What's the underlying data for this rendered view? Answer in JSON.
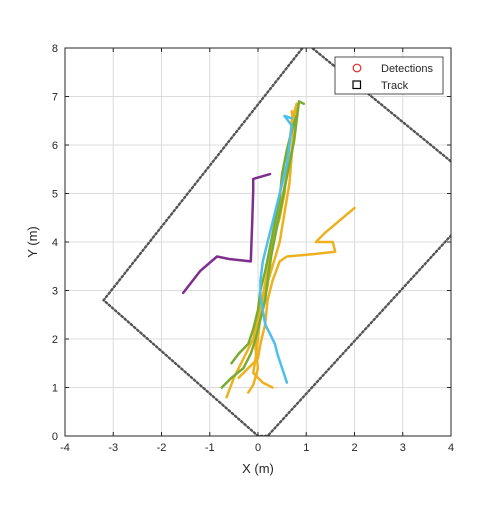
{
  "chart_data": {
    "type": "line",
    "title": "",
    "xlabel": "X (m)",
    "ylabel": "Y (m)",
    "xlim": [
      -4,
      4
    ],
    "ylim": [
      0,
      8
    ],
    "xticks": [
      "-4",
      "-3",
      "-2",
      "-1",
      "0",
      "1",
      "2",
      "3",
      "4"
    ],
    "yticks": [
      "0",
      "1",
      "2",
      "3",
      "4",
      "5",
      "6",
      "7",
      "8"
    ],
    "grid": true,
    "legend": {
      "placement": "top-right",
      "entries": [
        {
          "label": "Detections",
          "marker": "circle",
          "color": "#e0292a"
        },
        {
          "label": "Track",
          "marker": "square",
          "color": "#000000"
        }
      ]
    },
    "boundary": {
      "style": "dotted",
      "color": "#555555",
      "points": [
        [
          1.0,
          8.1
        ],
        [
          4.2,
          5.5
        ],
        [
          4.2,
          4.35
        ],
        [
          0.2,
          0.0
        ],
        [
          0.0,
          0.0
        ],
        [
          -3.2,
          2.8
        ],
        [
          1.0,
          8.1
        ]
      ]
    },
    "series": [
      {
        "color": "#7e2f8e",
        "points": [
          [
            -1.55,
            2.95
          ],
          [
            -1.2,
            3.4
          ],
          [
            -0.85,
            3.7
          ],
          [
            -0.6,
            3.65
          ],
          [
            -0.15,
            3.6
          ],
          [
            -0.12,
            4.4
          ],
          [
            -0.1,
            5.05
          ],
          [
            -0.1,
            5.3
          ],
          [
            0.25,
            5.4
          ]
        ]
      },
      {
        "color": "#edb120",
        "points": [
          [
            -0.65,
            0.8
          ],
          [
            -0.5,
            1.2
          ],
          [
            -0.3,
            1.6
          ],
          [
            -0.1,
            2.0
          ],
          [
            0.0,
            2.45
          ],
          [
            0.1,
            2.9
          ],
          [
            0.2,
            3.4
          ],
          [
            0.3,
            3.9
          ],
          [
            0.4,
            4.4
          ],
          [
            0.5,
            4.9
          ],
          [
            0.6,
            5.4
          ],
          [
            0.7,
            5.9
          ],
          [
            0.75,
            6.4
          ],
          [
            0.8,
            6.8
          ]
        ]
      },
      {
        "color": "#edb120",
        "points": [
          [
            -0.4,
            1.2
          ],
          [
            -0.2,
            1.4
          ],
          [
            0.0,
            1.6
          ],
          [
            0.05,
            1.9
          ],
          [
            0.15,
            2.3
          ],
          [
            0.2,
            2.8
          ],
          [
            0.3,
            3.2
          ],
          [
            0.45,
            3.6
          ],
          [
            0.6,
            3.7
          ],
          [
            1.15,
            3.75
          ],
          [
            1.6,
            3.8
          ],
          [
            1.55,
            4.0
          ],
          [
            1.2,
            4.0
          ],
          [
            1.4,
            4.2
          ],
          [
            2.0,
            4.7
          ]
        ]
      },
      {
        "color": "#edb120",
        "points": [
          [
            0.3,
            1.0
          ],
          [
            0.1,
            1.1
          ],
          [
            -0.1,
            1.3
          ],
          [
            -0.05,
            1.6
          ],
          [
            0.0,
            2.0
          ],
          [
            0.05,
            2.5
          ],
          [
            0.15,
            3.0
          ],
          [
            0.3,
            3.5
          ],
          [
            0.45,
            4.0
          ],
          [
            0.55,
            4.6
          ],
          [
            0.65,
            5.2
          ],
          [
            0.7,
            5.8
          ],
          [
            0.75,
            6.3
          ],
          [
            0.7,
            6.7
          ]
        ]
      },
      {
        "color": "#edb120",
        "points": [
          [
            -0.2,
            0.9
          ],
          [
            -0.1,
            1.05
          ],
          [
            0.0,
            1.4
          ],
          [
            -0.05,
            1.8
          ],
          [
            0.0,
            2.2
          ],
          [
            0.1,
            2.7
          ],
          [
            0.2,
            3.1
          ],
          [
            0.25,
            3.5
          ],
          [
            0.3,
            4.0
          ],
          [
            0.45,
            4.5
          ],
          [
            0.55,
            5.0
          ],
          [
            0.6,
            5.5
          ],
          [
            0.65,
            6.0
          ],
          [
            0.7,
            6.5
          ],
          [
            0.8,
            6.85
          ]
        ]
      },
      {
        "color": "#77ac30",
        "points": [
          [
            -0.75,
            1.0
          ],
          [
            -0.55,
            1.2
          ],
          [
            -0.3,
            1.4
          ],
          [
            -0.15,
            1.7
          ],
          [
            -0.05,
            2.0
          ],
          [
            0.05,
            2.4
          ],
          [
            0.15,
            2.8
          ],
          [
            0.2,
            3.2
          ],
          [
            0.25,
            3.6
          ],
          [
            0.35,
            4.1
          ],
          [
            0.45,
            4.6
          ],
          [
            0.55,
            5.1
          ],
          [
            0.65,
            5.6
          ],
          [
            0.75,
            6.1
          ],
          [
            0.8,
            6.5
          ],
          [
            0.85,
            6.9
          ],
          [
            0.95,
            6.85
          ]
        ]
      },
      {
        "color": "#77ac30",
        "points": [
          [
            -0.55,
            1.5
          ],
          [
            -0.4,
            1.7
          ],
          [
            -0.2,
            1.9
          ],
          [
            -0.1,
            2.2
          ],
          [
            0.0,
            2.6
          ],
          [
            0.05,
            3.0
          ],
          [
            0.15,
            3.4
          ],
          [
            0.25,
            3.9
          ],
          [
            0.35,
            4.4
          ],
          [
            0.45,
            4.9
          ],
          [
            0.5,
            5.4
          ],
          [
            0.6,
            5.9
          ],
          [
            0.7,
            6.3
          ],
          [
            0.8,
            6.6
          ]
        ]
      },
      {
        "color": "#4dbeee",
        "points": [
          [
            0.6,
            1.1
          ],
          [
            0.5,
            1.4
          ],
          [
            0.4,
            1.7
          ],
          [
            0.35,
            1.9
          ],
          [
            0.25,
            2.1
          ],
          [
            0.15,
            2.3
          ],
          [
            0.1,
            2.6
          ],
          [
            0.05,
            2.9
          ],
          [
            0.05,
            3.2
          ],
          [
            0.1,
            3.6
          ],
          [
            0.2,
            4.0
          ],
          [
            0.3,
            4.4
          ],
          [
            0.4,
            4.8
          ],
          [
            0.5,
            5.2
          ],
          [
            0.6,
            5.6
          ],
          [
            0.65,
            6.0
          ],
          [
            0.7,
            6.4
          ],
          [
            0.55,
            6.6
          ],
          [
            0.7,
            6.55
          ]
        ]
      }
    ]
  }
}
